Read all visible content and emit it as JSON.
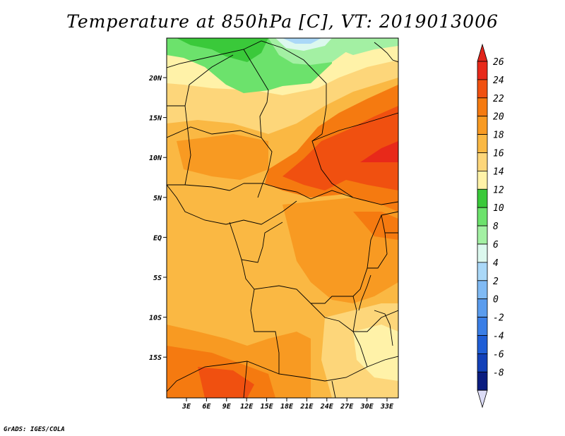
{
  "title": "Temperature at 850hPa [C], VT: 2019013006",
  "credit": "GrADS: IGES/COLA",
  "map": {
    "lon_ticks": [
      "3E",
      "6E",
      "9E",
      "12E",
      "15E",
      "18E",
      "21E",
      "24E",
      "27E",
      "30E",
      "33E"
    ],
    "lat_ticks": [
      "20N",
      "15N",
      "10N",
      "5N",
      "EQ",
      "5S",
      "10S",
      "15S"
    ]
  },
  "colorbar": {
    "labels": [
      "26",
      "24",
      "22",
      "20",
      "18",
      "16",
      "14",
      "12",
      "10",
      "8",
      "6",
      "4",
      "2",
      "0",
      "-2",
      "-4",
      "-6",
      "-8"
    ],
    "colors": [
      "#e8291a",
      "#f05010",
      "#f57a10",
      "#f89a22",
      "#fab843",
      "#fdd67a",
      "#fff2a8",
      "#3ac93a",
      "#6ce26c",
      "#a3f0a3",
      "#dcf8ee",
      "#aad8f8",
      "#80baf4",
      "#5a9cee",
      "#3a7ee6",
      "#1f5ed6",
      "#1240b8",
      "#0a1c80"
    ],
    "top_arrow": "#e0241a",
    "bottom_arrow": "#dcdcf6"
  }
}
